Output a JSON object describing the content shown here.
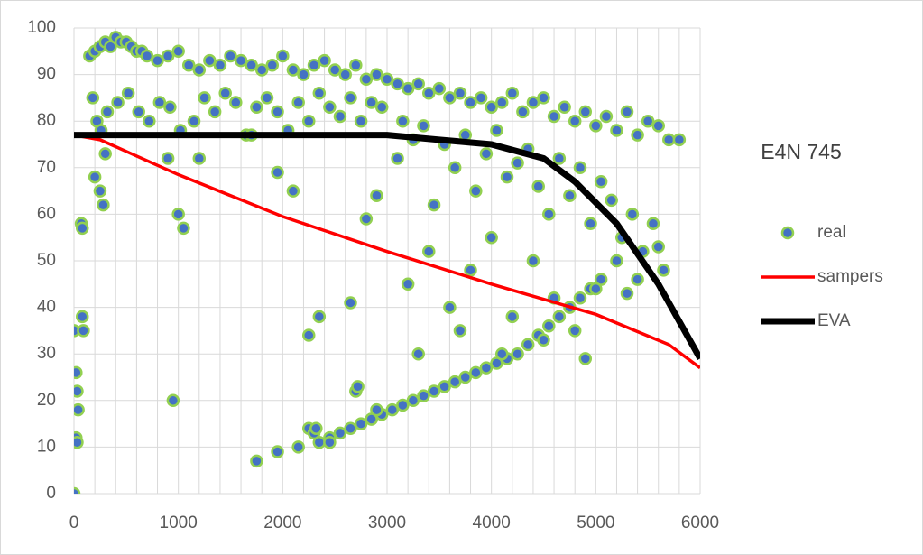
{
  "chart_data": {
    "type": "scatter",
    "title": "E4N 745",
    "xlim": [
      0,
      6000
    ],
    "ylim": [
      0,
      100
    ],
    "xticks": [
      0,
      1000,
      2000,
      3000,
      4000,
      5000,
      6000
    ],
    "yticks": [
      0,
      10,
      20,
      30,
      40,
      50,
      60,
      70,
      80,
      90,
      100
    ],
    "xgrid": [
      0,
      200,
      400,
      600,
      800,
      1000,
      1200,
      1400,
      1600,
      1800,
      2000,
      2200,
      2400,
      2600,
      2800,
      3000,
      3200,
      3400,
      3600,
      3800,
      4000,
      4200,
      4400,
      4600,
      4800,
      5000,
      5200,
      5400,
      5600,
      5800,
      6000
    ],
    "grid": true,
    "series": [
      {
        "name": "real",
        "type": "scatter",
        "color": "#4472c4",
        "edge_color": "#92d050",
        "x": [
          0,
          0,
          20,
          30,
          40,
          20,
          30,
          80,
          90,
          70,
          80,
          950,
          1000,
          1050,
          150,
          200,
          250,
          300,
          350,
          400,
          450,
          500,
          550,
          600,
          650,
          700,
          800,
          900,
          1000,
          1100,
          1200,
          1300,
          1400,
          1500,
          1600,
          1700,
          1800,
          1900,
          2000,
          2100,
          2200,
          2300,
          2400,
          2500,
          2600,
          2700,
          2800,
          2900,
          3000,
          180,
          220,
          260,
          320,
          420,
          520,
          620,
          720,
          820,
          920,
          1020,
          1150,
          1250,
          1350,
          1450,
          1550,
          1650,
          1750,
          1850,
          1950,
          2050,
          2150,
          2250,
          2350,
          2450,
          2550,
          2650,
          2750,
          2850,
          2950,
          200,
          250,
          280,
          300,
          900,
          1200,
          1700,
          1950,
          2100,
          2250,
          2350,
          2650,
          2800,
          2900,
          1750,
          1950,
          2150,
          2250,
          2350,
          2450,
          2550,
          2650,
          2750,
          2850,
          2950,
          3050,
          3150,
          3250,
          3350,
          3450,
          3550,
          3650,
          3750,
          3850,
          3950,
          4050,
          4150,
          4250,
          4350,
          4450,
          4550,
          4650,
          4750,
          4850,
          4950,
          5050,
          3100,
          3200,
          3300,
          3400,
          3500,
          3600,
          3700,
          3800,
          3900,
          4000,
          4100,
          4200,
          4300,
          4400,
          4500,
          4600,
          4700,
          4800,
          4900,
          5000,
          5100,
          5200,
          5300,
          5400,
          5500,
          5600,
          5700,
          5800,
          3100,
          3150,
          3250,
          3350,
          3450,
          3550,
          3650,
          3750,
          3850,
          3950,
          4050,
          4150,
          4250,
          4350,
          4450,
          4550,
          4650,
          4750,
          4850,
          4950,
          5050,
          5150,
          5250,
          5350,
          5450,
          5550,
          5650,
          3200,
          3400,
          3600,
          3800,
          4000,
          4200,
          4400,
          4600,
          4800,
          5000,
          5200,
          5400,
          5600,
          3300,
          3700,
          4100,
          4500,
          4900,
          5300,
          2700,
          2720,
          2300,
          2320,
          2850,
          2900,
          2450
        ],
        "y": [
          0,
          35,
          26,
          22,
          18,
          12,
          11,
          38,
          35,
          58,
          57,
          20,
          60,
          57,
          94,
          95,
          96,
          97,
          96,
          98,
          97,
          97,
          96,
          95,
          95,
          94,
          93,
          94,
          95,
          92,
          91,
          93,
          92,
          94,
          93,
          92,
          91,
          92,
          94,
          91,
          90,
          92,
          93,
          91,
          90,
          92,
          89,
          90,
          89,
          85,
          80,
          78,
          82,
          84,
          86,
          82,
          80,
          84,
          83,
          78,
          80,
          85,
          82,
          86,
          84,
          77,
          83,
          85,
          82,
          78,
          84,
          80,
          86,
          83,
          81,
          85,
          80,
          84,
          83,
          68,
          65,
          62,
          73,
          72,
          72,
          77,
          69,
          65,
          34,
          38,
          41,
          59,
          64,
          7,
          9,
          10,
          14,
          11,
          12,
          13,
          14,
          15,
          16,
          17,
          18,
          19,
          20,
          21,
          22,
          23,
          24,
          25,
          26,
          27,
          28,
          29,
          30,
          32,
          34,
          36,
          38,
          40,
          42,
          44,
          46,
          88,
          87,
          88,
          86,
          87,
          85,
          86,
          84,
          85,
          83,
          84,
          86,
          82,
          84,
          85,
          81,
          83,
          80,
          82,
          79,
          81,
          78,
          82,
          77,
          80,
          79,
          76,
          76,
          72,
          80,
          76,
          79,
          62,
          75,
          70,
          77,
          65,
          73,
          78,
          68,
          71,
          74,
          66,
          60,
          72,
          64,
          70,
          58,
          67,
          63,
          55,
          60,
          52,
          58,
          48,
          45,
          52,
          40,
          48,
          55,
          38,
          50,
          42,
          35,
          44,
          50,
          46,
          53,
          30,
          35,
          30,
          33,
          29,
          43,
          22,
          23,
          13,
          14,
          16,
          18,
          11
        ]
      },
      {
        "name": "sampers",
        "type": "line",
        "color": "#ff0000",
        "x": [
          0,
          250,
          1000,
          2000,
          3000,
          4000,
          5000,
          5700,
          6000
        ],
        "y": [
          77,
          76,
          68.5,
          59.5,
          52,
          45,
          38.5,
          32,
          27
        ]
      },
      {
        "name": "EVA",
        "type": "line",
        "color": "#000000",
        "x": [
          0,
          3000,
          3500,
          4000,
          4500,
          4800,
          5200,
          5600,
          6000
        ],
        "y": [
          77,
          77,
          76,
          75,
          72,
          67,
          58,
          45,
          29
        ]
      }
    ]
  }
}
